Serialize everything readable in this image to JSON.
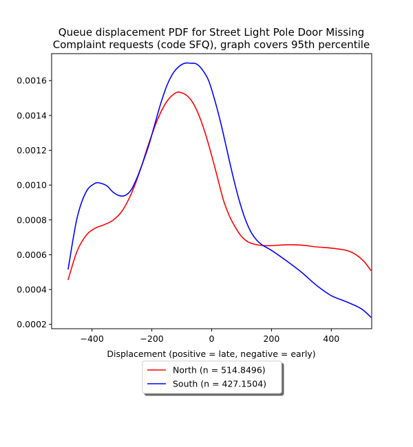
{
  "chart_data": {
    "type": "line",
    "title": "Queue displacement PDF for Street Light Pole Door Missing",
    "subtitle": "Complaint  requests (code SFQ), graph covers 95th percentile",
    "xlabel": "Displacement (positive = late, negative = early)",
    "ylabel": "",
    "xlim": [
      -535,
      535
    ],
    "ylim": [
      0.000175,
      0.001755
    ],
    "xticks": [
      -400,
      -200,
      0,
      200,
      400
    ],
    "xtick_labels": [
      "−400",
      "−200",
      "0",
      "200",
      "400"
    ],
    "yticks": [
      0.0002,
      0.0004,
      0.0006,
      0.0008,
      0.001,
      0.0012,
      0.0014,
      0.0016
    ],
    "ytick_labels": [
      "0.0002",
      "0.0004",
      "0.0006",
      "0.0008",
      "0.0010",
      "0.0012",
      "0.0014",
      "0.0016"
    ],
    "grid": false,
    "legend_position": "below-plot",
    "series": [
      {
        "name": "North (n = 514.8496)",
        "color": "#ff0000",
        "x": [
          -480,
          -450,
          -420,
          -390,
          -360,
          -330,
          -300,
          -270,
          -240,
          -210,
          -180,
          -150,
          -120,
          -100,
          -80,
          -60,
          -40,
          -20,
          0,
          20,
          40,
          60,
          80,
          100,
          120,
          140,
          160,
          180,
          200,
          250,
          300,
          350,
          400,
          450,
          480,
          510,
          533
        ],
        "y": [
          0.000455,
          0.00062,
          0.00071,
          0.000752,
          0.000772,
          0.000798,
          0.00085,
          0.000945,
          0.00108,
          0.00124,
          0.00138,
          0.00148,
          0.00153,
          0.00153,
          0.00151,
          0.001465,
          0.00139,
          0.00129,
          0.00117,
          0.00104,
          0.00091,
          0.00082,
          0.000755,
          0.000705,
          0.000675,
          0.000662,
          0.000655,
          0.000652,
          0.000652,
          0.000657,
          0.000655,
          0.000645,
          0.000638,
          0.000625,
          0.000603,
          0.00056,
          0.000508
        ]
      },
      {
        "name": "South (n = 427.1504)",
        "color": "#0000ff",
        "x": [
          -480,
          -450,
          -420,
          -390,
          -370,
          -350,
          -330,
          -310,
          -290,
          -270,
          -250,
          -230,
          -210,
          -190,
          -170,
          -150,
          -130,
          -110,
          -90,
          -70,
          -50,
          -30,
          -10,
          10,
          30,
          50,
          70,
          90,
          110,
          130,
          150,
          170,
          200,
          250,
          300,
          350,
          400,
          450,
          500,
          533
        ],
        "y": [
          0.000515,
          0.00081,
          0.00096,
          0.00101,
          0.00101,
          0.000995,
          0.00096,
          0.00094,
          0.00094,
          0.00097,
          0.00104,
          0.00113,
          0.00123,
          0.00135,
          0.00147,
          0.00157,
          0.00164,
          0.00168,
          0.0017,
          0.0017,
          0.001695,
          0.00166,
          0.0016,
          0.00149,
          0.00136,
          0.00121,
          0.00106,
          0.000925,
          0.000815,
          0.000735,
          0.000685,
          0.000655,
          0.000625,
          0.000565,
          0.0005,
          0.000425,
          0.000365,
          0.00033,
          0.00029,
          0.00024
        ]
      }
    ]
  }
}
